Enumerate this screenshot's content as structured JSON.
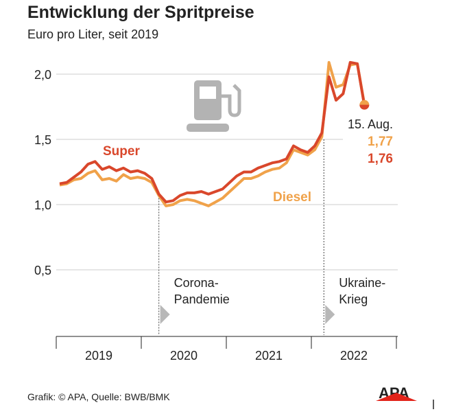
{
  "chart_data": {
    "type": "line",
    "title": "Entwicklung der Spritpreise",
    "subtitle": "Euro pro Liter, seit 2019",
    "ylim": [
      0.5,
      2.1
    ],
    "yticks": [
      "0,5",
      "1,0",
      "1,5",
      "2,0"
    ],
    "ytick_values": [
      0.5,
      1.0,
      1.5,
      2.0
    ],
    "xticks": [
      "2019",
      "2020",
      "2021",
      "2022"
    ],
    "grid": true,
    "x": [
      "2019-01",
      "2019-02",
      "2019-03",
      "2019-04",
      "2019-05",
      "2019-06",
      "2019-07",
      "2019-08",
      "2019-09",
      "2019-10",
      "2019-11",
      "2019-12",
      "2020-01",
      "2020-02",
      "2020-03",
      "2020-04",
      "2020-05",
      "2020-06",
      "2020-07",
      "2020-08",
      "2020-09",
      "2020-10",
      "2020-11",
      "2020-12",
      "2021-01",
      "2021-02",
      "2021-03",
      "2021-04",
      "2021-05",
      "2021-06",
      "2021-07",
      "2021-08",
      "2021-09",
      "2021-10",
      "2021-11",
      "2021-12",
      "2022-01",
      "2022-02",
      "2022-03",
      "2022-04",
      "2022-05",
      "2022-06",
      "2022-07",
      "2022-08"
    ],
    "series": [
      {
        "name": "Diesel",
        "color": "#f0a24a",
        "values": [
          1.15,
          1.16,
          1.19,
          1.2,
          1.24,
          1.26,
          1.19,
          1.2,
          1.18,
          1.23,
          1.2,
          1.21,
          1.2,
          1.17,
          1.07,
          0.99,
          1.0,
          1.03,
          1.04,
          1.03,
          1.01,
          0.99,
          1.02,
          1.05,
          1.1,
          1.15,
          1.2,
          1.2,
          1.22,
          1.25,
          1.27,
          1.28,
          1.32,
          1.42,
          1.4,
          1.38,
          1.42,
          1.52,
          2.09,
          1.9,
          1.92,
          2.07,
          2.08,
          1.77
        ]
      },
      {
        "name": "Super",
        "color": "#d9472b",
        "values": [
          1.16,
          1.17,
          1.21,
          1.25,
          1.31,
          1.33,
          1.27,
          1.29,
          1.26,
          1.28,
          1.25,
          1.26,
          1.24,
          1.2,
          1.08,
          1.02,
          1.03,
          1.07,
          1.09,
          1.09,
          1.1,
          1.08,
          1.1,
          1.12,
          1.17,
          1.22,
          1.25,
          1.25,
          1.28,
          1.3,
          1.32,
          1.33,
          1.35,
          1.45,
          1.42,
          1.4,
          1.45,
          1.55,
          1.98,
          1.8,
          1.85,
          2.09,
          2.08,
          1.76
        ]
      }
    ],
    "annotations": [
      {
        "text": "Corona-",
        "text2": "Pandemie",
        "date": "2020-03"
      },
      {
        "text": "Ukraine-",
        "text2": "Krieg",
        "date": "2022-02-24"
      }
    ],
    "end_label": {
      "date": "15. Aug.",
      "diesel": "1,77",
      "super": "1,76"
    }
  },
  "source": "Grafik: © APA, Quelle: BWB/BMK",
  "logo": "APA",
  "icon": "fuel-pump-icon"
}
